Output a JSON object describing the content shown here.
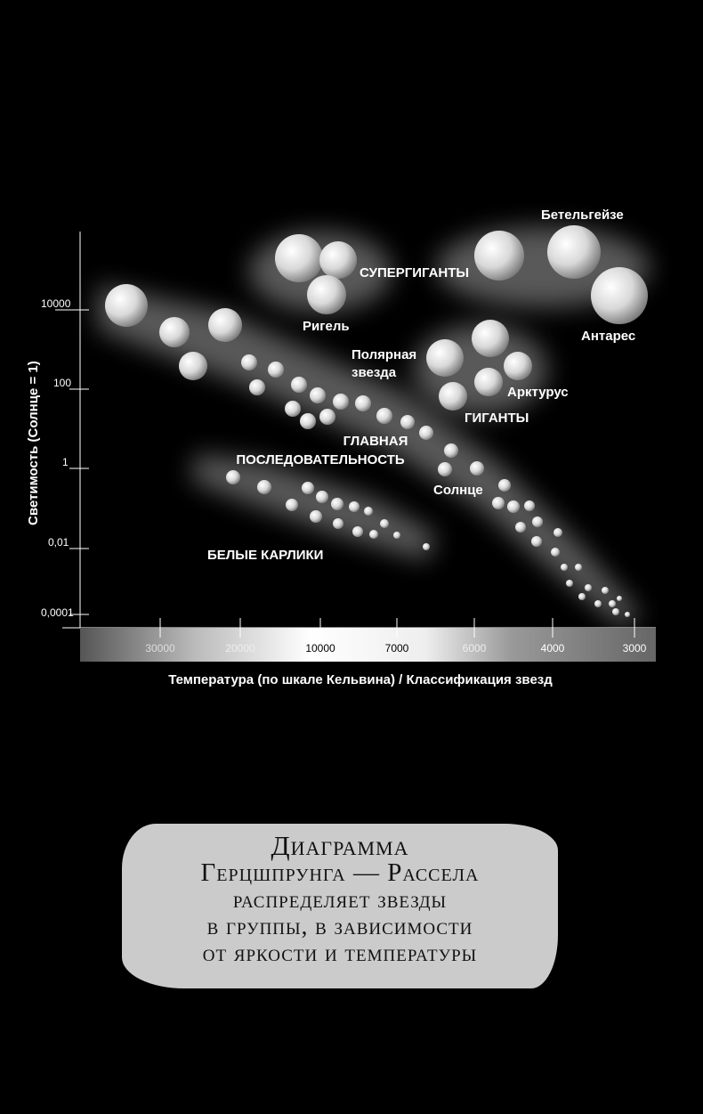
{
  "diagram": {
    "y_axis_label": "Светимость (Солнце = 1)",
    "y_ticks": [
      "10000",
      "100",
      "1",
      "0,01",
      "0,0001"
    ],
    "x_axis_label": "Температура (по шкале Кельвина) / Классификация звезд",
    "x_ticks": [
      "30000",
      "20000",
      "10000",
      "7000",
      "6000",
      "4000",
      "3000"
    ],
    "groups": {
      "supergiants": "СУПЕРГИГАНТЫ",
      "giants": "ГИГАНТЫ",
      "main_sequence_1": "ГЛАВНАЯ",
      "main_sequence_2": "ПОСЛЕДОВАТЕЛЬНОСТЬ",
      "white_dwarfs": "БЕЛЫЕ КАРЛИКИ"
    },
    "stars": {
      "betelgeuse": "Бетельгейзе",
      "antares": "Антарес",
      "rigel": "Ригель",
      "polaris_1": "Полярная",
      "polaris_2": "звезда",
      "arcturus": "Арктурус",
      "sun": "Солнце"
    }
  },
  "caption": {
    "lines": [
      "Диаграмма",
      "Герцшпрунга — Рассела",
      "распределяет звезды",
      "в группы, в зависимости",
      "от яркости и температуры"
    ]
  }
}
